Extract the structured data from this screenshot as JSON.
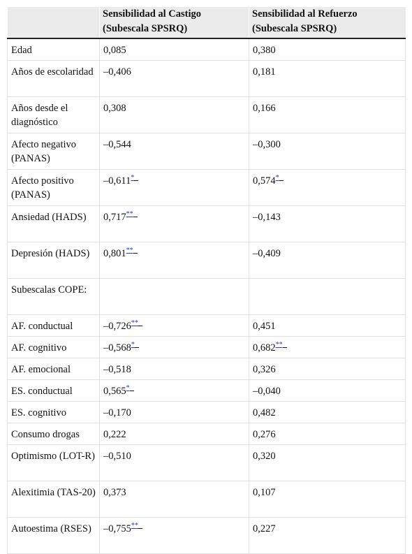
{
  "table": {
    "headers": [
      "",
      "Sensibilidad al Castigo (Subescala SPSRQ)",
      "Sensibilidad al Refuerzo (Subescala SPSRQ)"
    ],
    "rows": [
      {
        "label": "Edad",
        "castigo": "0,085",
        "castigo_mark": "",
        "refuerzo": "0,380",
        "refuerzo_mark": ""
      },
      {
        "label": "Años de escolaridad",
        "castigo": "–0,406",
        "castigo_mark": "",
        "refuerzo": "0,181",
        "refuerzo_mark": ""
      },
      {
        "label": "Años desde el diagnóstico",
        "castigo": "0,308",
        "castigo_mark": "",
        "refuerzo": "0,166",
        "refuerzo_mark": ""
      },
      {
        "label": "Afecto negativo (PANAS)",
        "castigo": "–0,544",
        "castigo_mark": "",
        "refuerzo": "–0,300",
        "refuerzo_mark": ""
      },
      {
        "label": "Afecto positivo (PANAS)",
        "castigo": "–0,611",
        "castigo_mark": "*",
        "refuerzo": "0,574",
        "refuerzo_mark": "*"
      },
      {
        "label": "Ansiedad (HADS)",
        "castigo": "0,717",
        "castigo_mark": "**",
        "refuerzo": "–0,143",
        "refuerzo_mark": ""
      },
      {
        "label": "Depresión (HADS)",
        "castigo": "0,801",
        "castigo_mark": "**",
        "refuerzo": "–0,409",
        "refuerzo_mark": ""
      },
      {
        "label": "Subescalas COPE:",
        "castigo": "",
        "castigo_mark": "",
        "refuerzo": "",
        "refuerzo_mark": ""
      },
      {
        "label": "AF. conductual",
        "castigo": "–0,726",
        "castigo_mark": "**",
        "refuerzo": "0,451",
        "refuerzo_mark": ""
      },
      {
        "label": "AF. cognitivo",
        "castigo": "–0,568",
        "castigo_mark": "*",
        "refuerzo": "0,682",
        "refuerzo_mark": "**"
      },
      {
        "label": "AF. emocional",
        "castigo": "–0,518",
        "castigo_mark": "",
        "refuerzo": "0,326",
        "refuerzo_mark": ""
      },
      {
        "label": "ES. conductual",
        "castigo": "0,565",
        "castigo_mark": "*",
        "refuerzo": "–0,040",
        "refuerzo_mark": ""
      },
      {
        "label": "ES. cognitivo",
        "castigo": "–0,170",
        "castigo_mark": "",
        "refuerzo": "0,482",
        "refuerzo_mark": ""
      },
      {
        "label": "Consumo drogas",
        "castigo": "0,222",
        "castigo_mark": "",
        "refuerzo": "0,276",
        "refuerzo_mark": ""
      },
      {
        "label": "Optimismo (LOT-R)",
        "castigo": "–0,510",
        "castigo_mark": "",
        "refuerzo": "0,320",
        "refuerzo_mark": ""
      },
      {
        "label": "Alexitimia (TAS-20)",
        "castigo": "0,373",
        "castigo_mark": "",
        "refuerzo": "0,107",
        "refuerzo_mark": ""
      },
      {
        "label": "Autoestima (RSES)",
        "castigo": "–0,755",
        "castigo_mark": "**",
        "refuerzo": "0,227",
        "refuerzo_mark": ""
      }
    ]
  },
  "colors": {
    "header_bg": "#ebebeb",
    "link": "#1a3fd1",
    "grid": "#e2e2e2"
  }
}
